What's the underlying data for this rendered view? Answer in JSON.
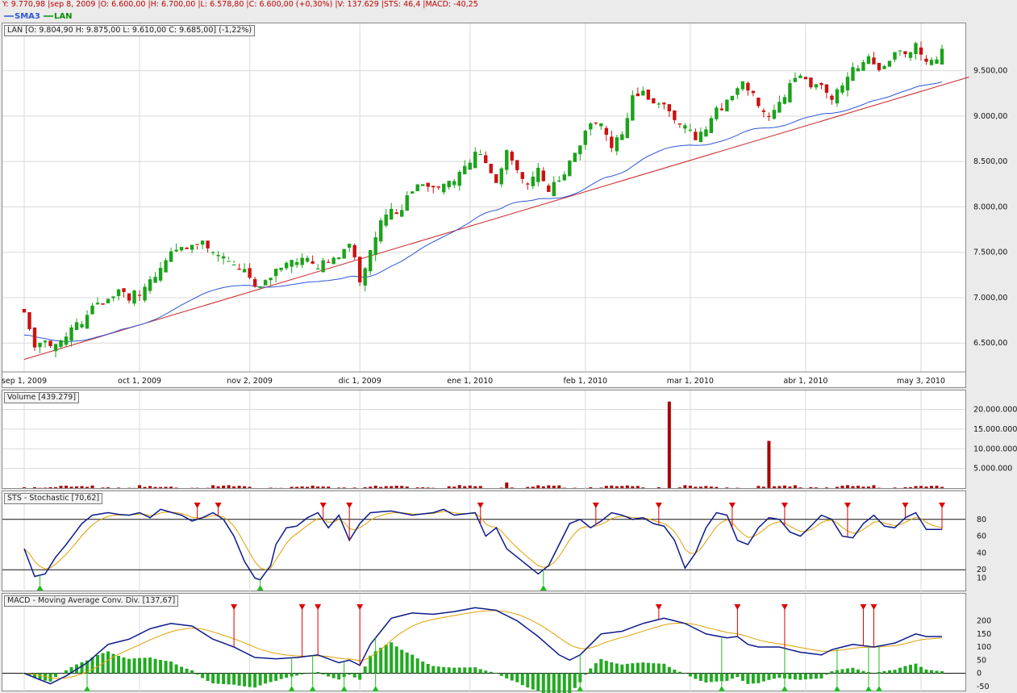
{
  "status_line": "Y: 9.770,98 |sep 8, 2009 |O: 6.600,00 |H: 6.700,00 |L: 6.578,80 |C: 6.600,00 (+0,30%) |V: 137.629 |STS: 46,4 |MACD: -40,25",
  "legend": {
    "sma_label": "SMA3",
    "lan_label": "LAN",
    "sma_color": "#2f56d6",
    "lan_color": "#0a8f0a"
  },
  "colors": {
    "up": "#1aa31a",
    "down": "#cc1111",
    "sma": "#2f56d6",
    "trend": "#cc2222",
    "osc": "#0c1a8a",
    "signal": "#e0a000",
    "hist_pos": "#22aa22",
    "volume": "#aa0000",
    "marker_sell": "#dd0000",
    "marker_buy": "#22bb22"
  },
  "panels": {
    "price_title": "LAN [O: 9.804,90  H: 9.875,00  L: 9.610,00  C: 9.685,00] (-1,22%)",
    "volume_title": "Volume [439.279]",
    "sts_title": "STS - Stochastic [70,62]",
    "macd_title": "MACD - Moving Average Conv. Div. [137,67]"
  },
  "chart_data": [
    {
      "type": "candlestick",
      "name": "LAN",
      "ylim": [
        6200,
        9950
      ],
      "yticks": [
        6500,
        7000,
        7500,
        8000,
        8500,
        9000,
        9500
      ],
      "ytick_labels": [
        "6.500,00",
        "7.000,00",
        "7.500,00",
        "8.000,00",
        "8.500,00",
        "9.000,00",
        "9.500,00"
      ],
      "x_ticks": [
        {
          "i": 0,
          "label": "sep 1, 2009"
        },
        {
          "i": 22,
          "label": "oct 1, 2009"
        },
        {
          "i": 43,
          "label": "nov 2, 2009"
        },
        {
          "i": 64,
          "label": "dic 1, 2009"
        },
        {
          "i": 85,
          "label": "ene 1, 2010"
        },
        {
          "i": 107,
          "label": "feb 1, 2010"
        },
        {
          "i": 127,
          "label": "mar 1, 2010"
        },
        {
          "i": 149,
          "label": "abr 1, 2010"
        },
        {
          "i": 171,
          "label": "may 3, 2010"
        }
      ],
      "keypoints": [
        [
          0,
          6800
        ],
        [
          2,
          6450
        ],
        [
          4,
          6550
        ],
        [
          8,
          6700
        ],
        [
          12,
          6850
        ],
        [
          16,
          7000
        ],
        [
          22,
          7150
        ],
        [
          26,
          7400
        ],
        [
          30,
          7550
        ],
        [
          34,
          7650
        ],
        [
          38,
          7550
        ],
        [
          42,
          7300
        ],
        [
          44,
          7100
        ],
        [
          46,
          7200
        ],
        [
          50,
          7450
        ],
        [
          54,
          7500
        ],
        [
          58,
          7350
        ],
        [
          62,
          7550
        ],
        [
          64,
          7300
        ],
        [
          66,
          7600
        ],
        [
          68,
          7900
        ],
        [
          70,
          8050
        ],
        [
          72,
          8000
        ],
        [
          74,
          8200
        ],
        [
          78,
          8250
        ],
        [
          82,
          8400
        ],
        [
          84,
          8550
        ],
        [
          86,
          8650
        ],
        [
          88,
          8500
        ],
        [
          90,
          8300
        ],
        [
          92,
          8600
        ],
        [
          94,
          8500
        ],
        [
          96,
          8350
        ],
        [
          98,
          8500
        ],
        [
          100,
          8250
        ],
        [
          102,
          8300
        ],
        [
          104,
          8500
        ],
        [
          106,
          8700
        ],
        [
          108,
          8950
        ],
        [
          110,
          9000
        ],
        [
          112,
          8750
        ],
        [
          114,
          8900
        ],
        [
          116,
          9200
        ],
        [
          118,
          9300
        ],
        [
          120,
          9150
        ],
        [
          124,
          9050
        ],
        [
          126,
          8950
        ],
        [
          128,
          8850
        ],
        [
          130,
          8950
        ],
        [
          134,
          9150
        ],
        [
          136,
          9350
        ],
        [
          138,
          9400
        ],
        [
          140,
          9200
        ],
        [
          142,
          9100
        ],
        [
          144,
          9250
        ],
        [
          146,
          9400
        ],
        [
          148,
          9450
        ],
        [
          150,
          9350
        ],
        [
          154,
          9300
        ],
        [
          156,
          9400
        ],
        [
          158,
          9600
        ],
        [
          160,
          9700
        ],
        [
          162,
          9550
        ],
        [
          164,
          9550
        ],
        [
          166,
          9700
        ],
        [
          168,
          9800
        ],
        [
          170,
          9850
        ],
        [
          172,
          9700
        ]
      ],
      "sma_start": 6700,
      "trendline": {
        "from": [
          0,
          6320
        ],
        "to": [
          174,
          9270
        ]
      }
    },
    {
      "type": "bar",
      "name": "Volume",
      "ylim": [
        0,
        24000000
      ],
      "yticks": [
        5000000,
        10000000,
        15000000,
        20000000
      ],
      "ytick_labels": [
        "5.000.000",
        "10.000.000",
        "15.000.000",
        "20.000.000"
      ],
      "spikes": [
        {
          "i": 123,
          "value": 22000000
        },
        {
          "i": 142,
          "value": 12000000
        },
        {
          "i": 92,
          "value": 1400000
        }
      ]
    },
    {
      "type": "line",
      "name": "STS - Stochastic",
      "ylim": [
        0,
        100
      ],
      "yticks": [
        10,
        20,
        40,
        60,
        80
      ],
      "ytick_labels": [
        "10",
        "20",
        "40",
        "60",
        "80"
      ],
      "levels": [
        20,
        80
      ],
      "keypoints": [
        [
          0,
          45
        ],
        [
          2,
          12
        ],
        [
          4,
          15
        ],
        [
          6,
          35
        ],
        [
          8,
          50
        ],
        [
          11,
          75
        ],
        [
          13,
          85
        ],
        [
          16,
          88
        ],
        [
          18,
          86
        ],
        [
          20,
          85
        ],
        [
          22,
          88
        ],
        [
          24,
          82
        ],
        [
          26,
          92
        ],
        [
          30,
          85
        ],
        [
          32,
          78
        ],
        [
          34,
          82
        ],
        [
          36,
          88
        ],
        [
          38,
          80
        ],
        [
          40,
          60
        ],
        [
          42,
          30
        ],
        [
          44,
          10
        ],
        [
          45,
          8
        ],
        [
          47,
          25
        ],
        [
          48,
          50
        ],
        [
          50,
          70
        ],
        [
          52,
          72
        ],
        [
          54,
          82
        ],
        [
          56,
          88
        ],
        [
          58,
          70
        ],
        [
          60,
          85
        ],
        [
          62,
          55
        ],
        [
          64,
          75
        ],
        [
          66,
          88
        ],
        [
          70,
          90
        ],
        [
          74,
          85
        ],
        [
          78,
          88
        ],
        [
          80,
          92
        ],
        [
          82,
          85
        ],
        [
          86,
          88
        ],
        [
          88,
          60
        ],
        [
          90,
          70
        ],
        [
          92,
          45
        ],
        [
          94,
          35
        ],
        [
          96,
          25
        ],
        [
          98,
          15
        ],
        [
          100,
          25
        ],
        [
          102,
          50
        ],
        [
          104,
          75
        ],
        [
          106,
          80
        ],
        [
          108,
          70
        ],
        [
          110,
          78
        ],
        [
          112,
          88
        ],
        [
          114,
          85
        ],
        [
          116,
          80
        ],
        [
          118,
          82
        ],
        [
          120,
          75
        ],
        [
          122,
          72
        ],
        [
          124,
          55
        ],
        [
          126,
          22
        ],
        [
          128,
          40
        ],
        [
          130,
          70
        ],
        [
          132,
          88
        ],
        [
          134,
          85
        ],
        [
          136,
          55
        ],
        [
          138,
          50
        ],
        [
          140,
          70
        ],
        [
          142,
          82
        ],
        [
          144,
          80
        ],
        [
          146,
          65
        ],
        [
          148,
          60
        ],
        [
          150,
          72
        ],
        [
          152,
          85
        ],
        [
          154,
          80
        ],
        [
          156,
          60
        ],
        [
          158,
          58
        ],
        [
          160,
          75
        ],
        [
          162,
          85
        ],
        [
          164,
          72
        ],
        [
          166,
          70
        ],
        [
          168,
          82
        ],
        [
          170,
          88
        ],
        [
          172,
          68
        ]
      ],
      "buy_markers": [
        3,
        45,
        99
      ],
      "sell_markers": [
        33,
        37,
        57,
        62,
        87,
        109,
        121,
        135,
        145,
        157,
        168,
        175
      ]
    },
    {
      "type": "line",
      "name": "MACD",
      "ylim": [
        -60,
        260
      ],
      "yticks": [
        -50,
        0,
        50,
        100,
        150,
        200
      ],
      "ytick_labels": [
        "-50",
        "0",
        "50",
        "100",
        "150",
        "200"
      ],
      "keypoints": [
        [
          0,
          0
        ],
        [
          3,
          -25
        ],
        [
          5,
          -40
        ],
        [
          8,
          -10
        ],
        [
          12,
          40
        ],
        [
          16,
          110
        ],
        [
          20,
          130
        ],
        [
          24,
          170
        ],
        [
          28,
          190
        ],
        [
          32,
          180
        ],
        [
          36,
          130
        ],
        [
          40,
          100
        ],
        [
          44,
          60
        ],
        [
          48,
          55
        ],
        [
          52,
          60
        ],
        [
          56,
          70
        ],
        [
          58,
          55
        ],
        [
          60,
          40
        ],
        [
          62,
          50
        ],
        [
          64,
          30
        ],
        [
          66,
          110
        ],
        [
          70,
          210
        ],
        [
          74,
          230
        ],
        [
          78,
          225
        ],
        [
          82,
          235
        ],
        [
          86,
          250
        ],
        [
          90,
          240
        ],
        [
          94,
          200
        ],
        [
          98,
          140
        ],
        [
          102,
          70
        ],
        [
          104,
          50
        ],
        [
          106,
          70
        ],
        [
          110,
          150
        ],
        [
          114,
          160
        ],
        [
          118,
          190
        ],
        [
          122,
          210
        ],
        [
          126,
          190
        ],
        [
          130,
          150
        ],
        [
          134,
          135
        ],
        [
          136,
          140
        ],
        [
          138,
          110
        ],
        [
          140,
          100
        ],
        [
          144,
          100
        ],
        [
          148,
          80
        ],
        [
          152,
          70
        ],
        [
          154,
          90
        ],
        [
          158,
          110
        ],
        [
          162,
          100
        ],
        [
          166,
          115
        ],
        [
          170,
          150
        ],
        [
          172,
          140
        ]
      ],
      "signal_markers_sell": [
        40,
        53,
        56,
        64,
        121,
        136,
        145,
        160,
        162
      ],
      "signal_markers_buy": [
        12,
        51,
        55,
        61,
        67,
        106,
        133,
        145,
        155,
        161,
        163
      ]
    }
  ]
}
